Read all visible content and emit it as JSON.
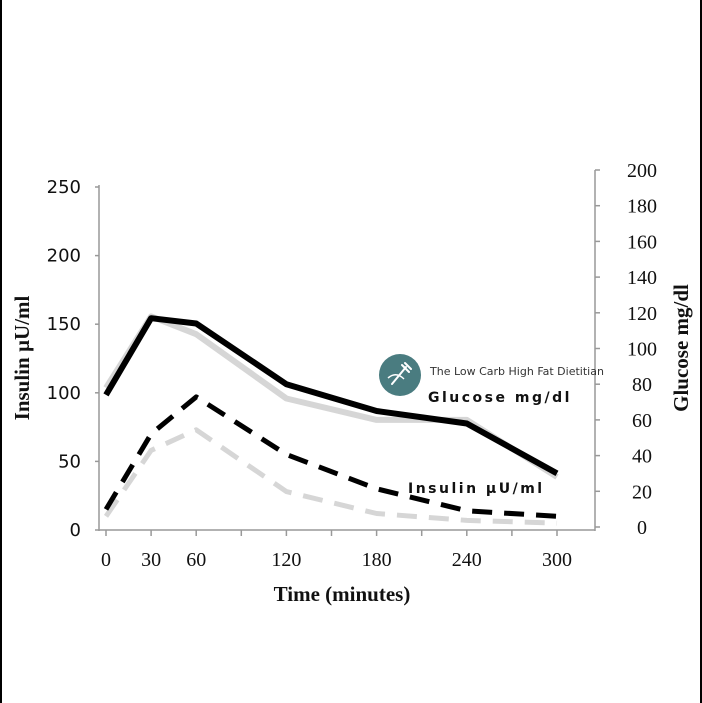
{
  "chart_data": {
    "type": "line",
    "xlabel": "Time (minutes)",
    "ylabel_left": "Insulin µU/ml",
    "ylabel_right": "Glucose mg/dl",
    "x_ticks": [
      "0",
      "30",
      "60",
      "120",
      "180",
      "240",
      "300"
    ],
    "xlim": [
      0,
      300
    ],
    "y_left_ticks": [
      "0",
      "50",
      "100",
      "150",
      "200",
      "250"
    ],
    "y_left_lim": [
      0,
      250
    ],
    "y_right_ticks": [
      "0",
      "20",
      "40",
      "60",
      "80",
      "100",
      "120",
      "140",
      "160",
      "180",
      "200"
    ],
    "y_right_lim": [
      0,
      200
    ],
    "grid": false,
    "series": [
      {
        "axis": "right",
        "style": "solid",
        "color": "#d6d6d6",
        "x": [
          0,
          30,
          60,
          120,
          180,
          240,
          300
        ],
        "y": [
          78,
          118,
          108,
          72,
          60,
          60,
          28
        ]
      },
      {
        "axis": "right",
        "style": "solid",
        "color": "#000000",
        "x": [
          0,
          30,
          60,
          120,
          180,
          240,
          300
        ],
        "y": [
          74,
          117,
          114,
          80,
          65,
          58,
          30
        ]
      },
      {
        "axis": "left",
        "style": "dashed",
        "color": "#d6d6d6",
        "x": [
          0,
          30,
          60,
          120,
          180,
          240,
          300
        ],
        "y": [
          10,
          58,
          73,
          28,
          12,
          7,
          5
        ]
      },
      {
        "axis": "left",
        "style": "dashed",
        "color": "#000000",
        "x": [
          0,
          30,
          60,
          120,
          180,
          240,
          300
        ],
        "y": [
          15,
          70,
          97,
          55,
          30,
          14,
          10
        ]
      }
    ],
    "annotations": [
      {
        "text": "Glucose mg/dl"
      },
      {
        "text": "Insulin µU/ml"
      }
    ]
  },
  "watermark": {
    "text": "The Low Carb High Fat Dietitian",
    "icon": "fork-logo-icon",
    "color": "#4a7c80"
  }
}
